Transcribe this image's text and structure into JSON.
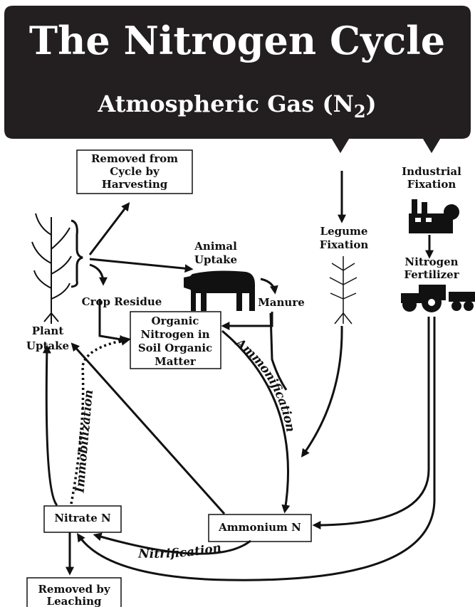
{
  "header": {
    "title": "The Nitrogen Cycle",
    "subtitle": {
      "text": "Atmospheric Gas (N",
      "subscript": "2",
      "close": ")"
    }
  },
  "boxes": {
    "harvesting": [
      "Removed from",
      "Cycle by",
      "Harvesting"
    ],
    "organic": [
      "Organic",
      "Nitrogen in",
      "Soil Organic",
      "Matter"
    ],
    "nitrate": [
      "Nitrate N"
    ],
    "ammonium": [
      "Ammonium N"
    ],
    "leaching": [
      "Removed by",
      "Leaching"
    ]
  },
  "labels": {
    "plant_uptake": [
      "Plant",
      "Uptake"
    ],
    "crop_residue": [
      "Crop Residue"
    ],
    "animal_uptake": [
      "Animal",
      "Uptake"
    ],
    "manure": [
      "Manure"
    ],
    "legume_fixation": [
      "Legume",
      "Fixation"
    ],
    "industrial_fixation": [
      "Industrial",
      "Fixation"
    ],
    "nitrogen_fertilizer": [
      "Nitrogen",
      "Fertilizer"
    ]
  },
  "processes": {
    "ammonification": "Ammonification",
    "immobilization": "Immobilization",
    "nitrification": "Nitrification"
  }
}
